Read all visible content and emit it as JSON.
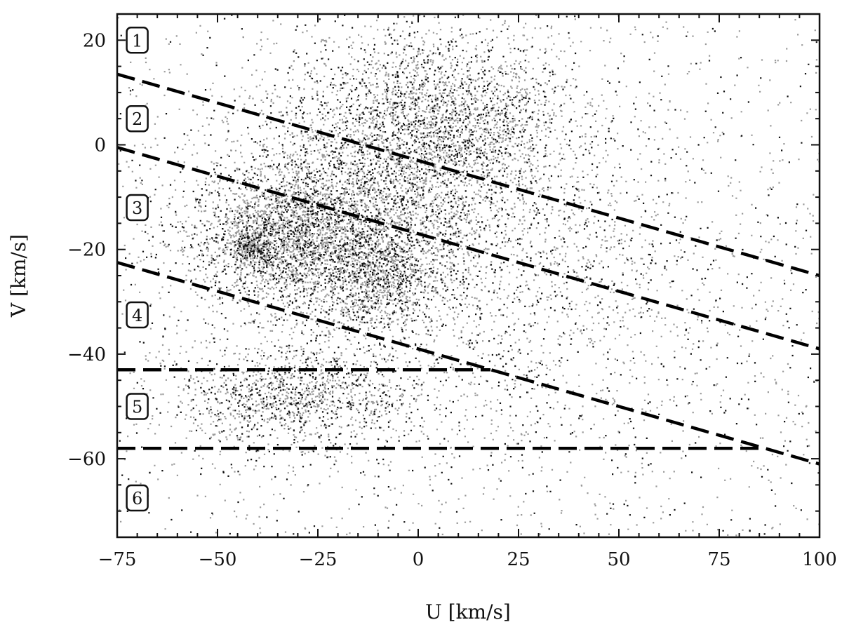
{
  "chart_data": {
    "type": "scatter",
    "xlabel": "U [km/s]",
    "ylabel": "V [km/s]",
    "xlim": [
      -75,
      100
    ],
    "ylim": [
      -75,
      25
    ],
    "x_ticks": [
      {
        "value": -75,
        "label": "−75"
      },
      {
        "value": -50,
        "label": "−50"
      },
      {
        "value": -25,
        "label": "−25"
      },
      {
        "value": 0,
        "label": "0"
      },
      {
        "value": 25,
        "label": "25"
      },
      {
        "value": 50,
        "label": "50"
      },
      {
        "value": 75,
        "label": "75"
      },
      {
        "value": 100,
        "label": "100"
      }
    ],
    "y_ticks": [
      {
        "value": 20,
        "label": "20"
      },
      {
        "value": 0,
        "label": "0"
      },
      {
        "value": -20,
        "label": "−20"
      },
      {
        "value": -40,
        "label": "−40"
      },
      {
        "value": -60,
        "label": "−60"
      }
    ],
    "grid": false,
    "point_colors": [
      "#9a9a9a",
      "#111111"
    ],
    "density_clusters": [
      {
        "u": 5,
        "v": 5,
        "su": 18,
        "sv": 9,
        "weight": 0.22
      },
      {
        "u": -32,
        "v": -18,
        "su": 13,
        "sv": 7,
        "weight": 0.2
      },
      {
        "u": -10,
        "v": -25,
        "su": 8,
        "sv": 5,
        "weight": 0.08
      },
      {
        "u": -42,
        "v": -19,
        "su": 2.5,
        "sv": 1.5,
        "weight": 0.02
      },
      {
        "u": -12,
        "v": -10,
        "su": 20,
        "sv": 10,
        "weight": 0.18
      },
      {
        "u": -30,
        "v": -48,
        "su": 15,
        "sv": 5,
        "weight": 0.1
      },
      {
        "u": 20,
        "v": -25,
        "su": 30,
        "sv": 15,
        "weight": 0.1
      },
      {
        "u": 10,
        "v": -35,
        "su": 45,
        "sv": 22,
        "weight": 0.1
      }
    ],
    "dividing_lines": [
      {
        "points": [
          [
            -75,
            13.5
          ],
          [
            100,
            -25
          ]
        ]
      },
      {
        "points": [
          [
            -75,
            -0.5
          ],
          [
            100,
            -39
          ]
        ]
      },
      {
        "points": [
          [
            -75,
            -22.5
          ],
          [
            100,
            -61
          ]
        ]
      },
      {
        "points": [
          [
            -75,
            -43
          ],
          [
            18,
            -43
          ]
        ]
      },
      {
        "points": [
          [
            -75,
            -58
          ],
          [
            86,
            -58
          ]
        ]
      }
    ],
    "regions": [
      {
        "label": "1",
        "u": -70,
        "v": 20
      },
      {
        "label": "2",
        "u": -70,
        "v": 5
      },
      {
        "label": "3",
        "u": -70,
        "v": -12
      },
      {
        "label": "4",
        "u": -70,
        "v": -32.5
      },
      {
        "label": "5",
        "u": -70,
        "v": -50
      },
      {
        "label": "6",
        "u": -70,
        "v": -67.5
      }
    ]
  }
}
